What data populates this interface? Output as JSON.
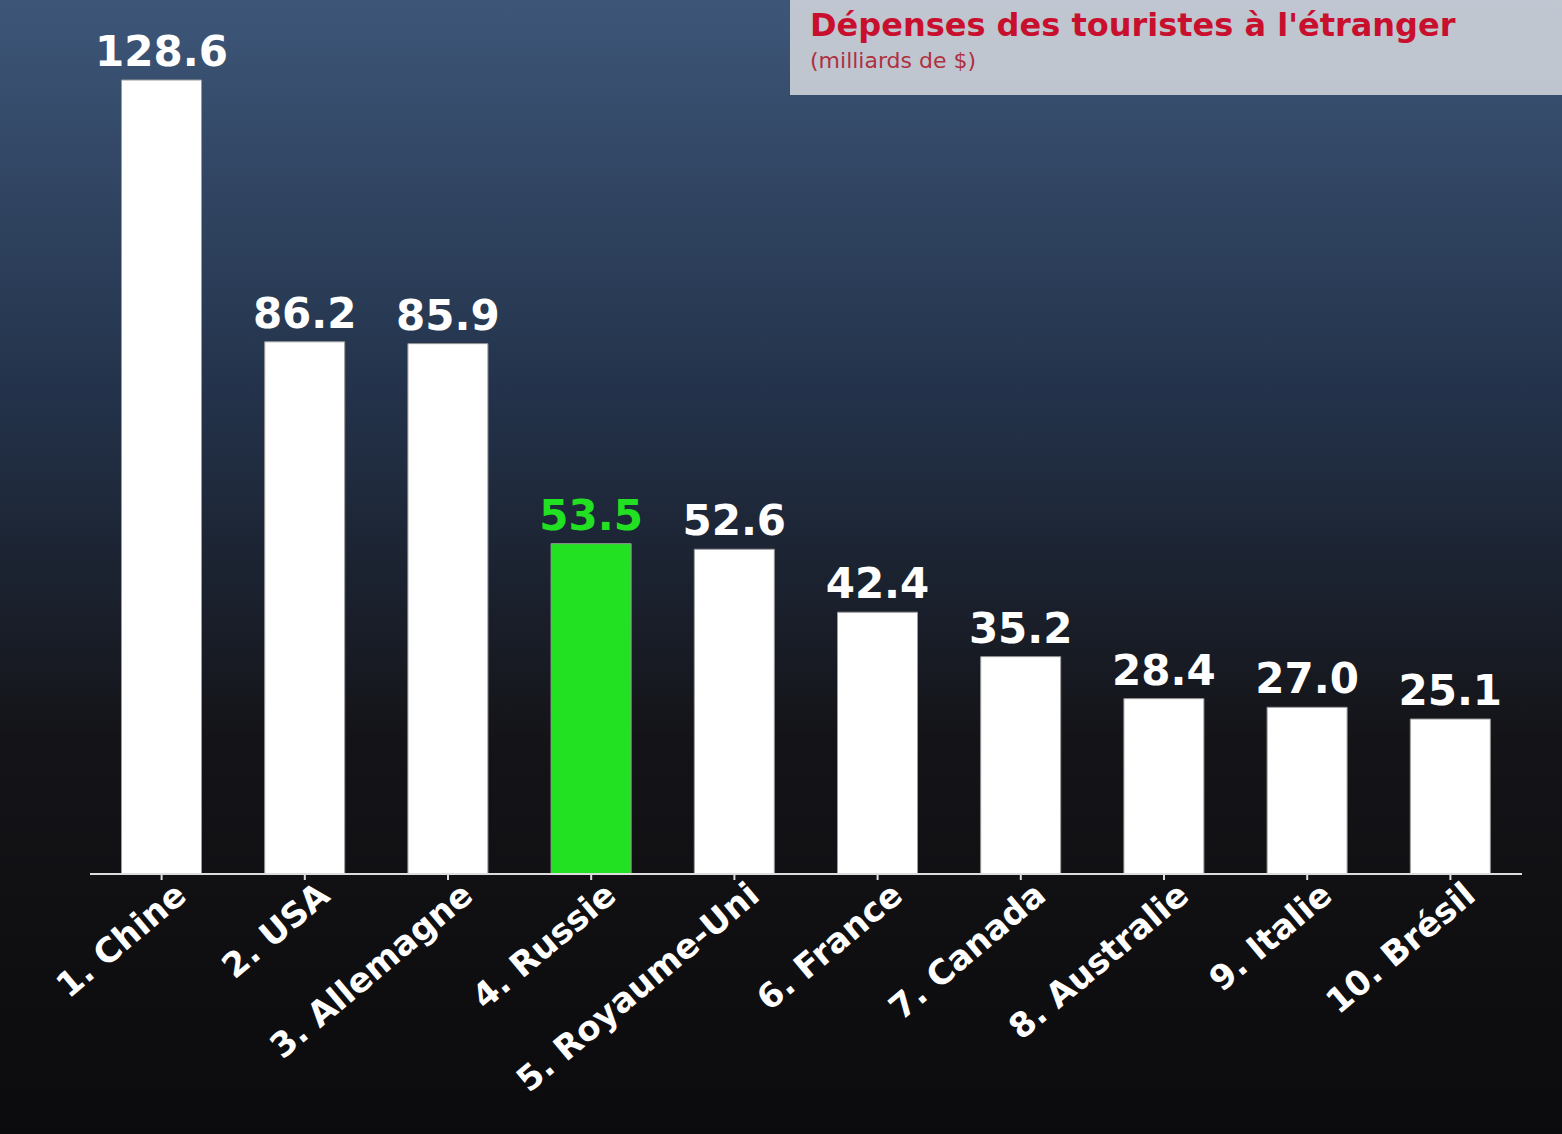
{
  "chart_data": {
    "type": "bar",
    "title": "Dépenses des touristes à l'étranger",
    "subtitle": "(milliards de $)",
    "categories": [
      "1. Chine",
      "2. USA",
      "3. Allemagne",
      "4. Russie",
      "5. Royaume-Uni",
      "6. France",
      "7. Canada",
      "8. Australie",
      "9. Italie",
      "10. Brésil"
    ],
    "values": [
      128.6,
      86.2,
      85.9,
      53.5,
      52.6,
      42.4,
      35.2,
      28.4,
      27.0,
      25.1
    ],
    "value_labels": [
      "128.6",
      "86.2",
      "85.9",
      "53.5",
      "52.6",
      "42.4",
      "35.2",
      "28.4",
      "27.0",
      "25.1"
    ],
    "colors": [
      "#ffffff",
      "#ffffff",
      "#ffffff",
      "#22e022",
      "#ffffff",
      "#ffffff",
      "#ffffff",
      "#ffffff",
      "#ffffff",
      "#ffffff"
    ],
    "data_labels": true,
    "tick_labels": "x",
    "grid": false
  }
}
